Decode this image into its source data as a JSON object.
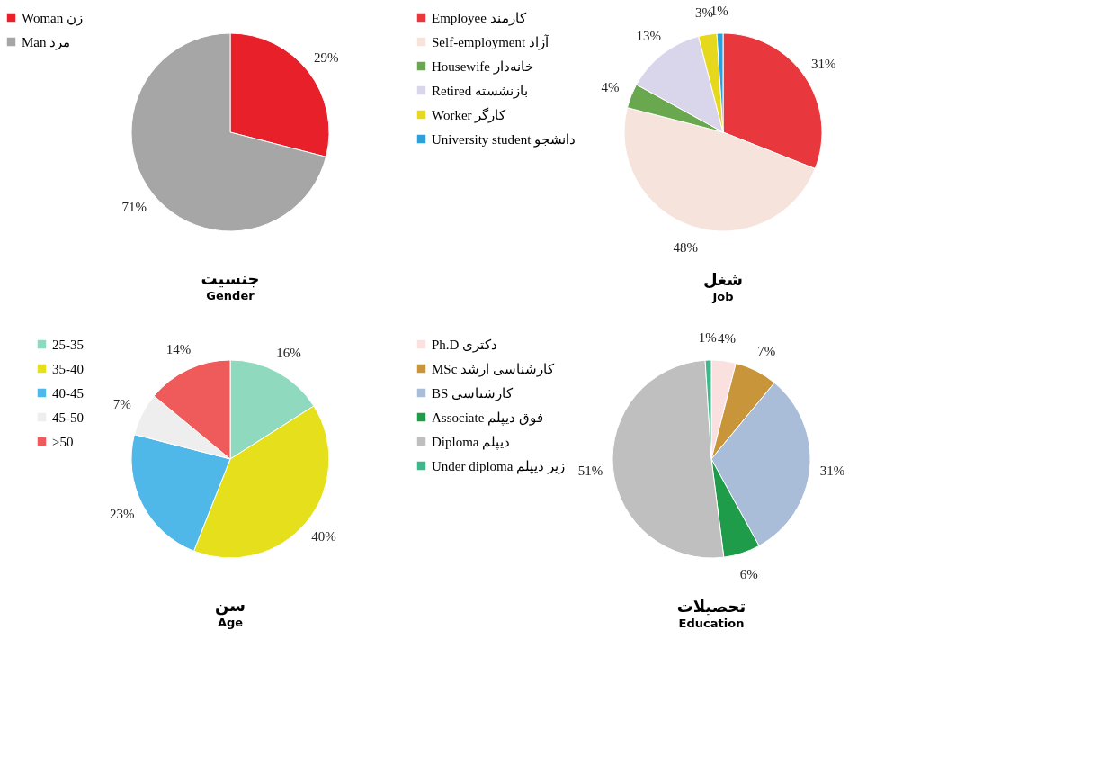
{
  "chart_data": [
    {
      "type": "pie",
      "title": "جنسیت",
      "subtitle": "Gender",
      "categories": [
        "Woman زن",
        "Man مرد"
      ],
      "values": [
        29,
        71
      ],
      "colors": [
        "#e8202a",
        "#a6a6a6"
      ],
      "value_labels": [
        "29%",
        "71%"
      ],
      "legend": "left"
    },
    {
      "type": "pie",
      "title": "شغل",
      "subtitle": "Job",
      "categories": [
        "Employee کارمند",
        "Self-employment آزاد",
        "Housewife خانه‌دار",
        "Retired بازنشسته",
        "Worker کارگر",
        "University student دانشجو"
      ],
      "values": [
        31,
        48,
        4,
        13,
        3,
        1
      ],
      "colors": [
        "#e8383d",
        "#f6e4dc",
        "#6aa84f",
        "#d9d6ec",
        "#e6d81c",
        "#2e9fd8"
      ],
      "value_labels": [
        "31%",
        "48%",
        "4%",
        "13%",
        "3%",
        "1%"
      ],
      "legend": "left"
    },
    {
      "type": "pie",
      "title": "سن",
      "subtitle": "Age",
      "categories": [
        "25-35",
        "35-40",
        "40-45",
        "45-50",
        ">50"
      ],
      "values": [
        16,
        40,
        23,
        7,
        14
      ],
      "colors": [
        "#8fd9be",
        "#e6e01c",
        "#4fb8e8",
        "#eeeeee",
        "#ef5a5a"
      ],
      "value_labels": [
        "16%",
        "40%",
        "23%",
        "7%",
        "14%"
      ],
      "legend": "left"
    },
    {
      "type": "pie",
      "title": "تحصیلات",
      "subtitle": "Education",
      "categories": [
        "Ph.D دکتری",
        "MSc کارشناسی ارشد",
        "BS کارشناسی",
        "Associate فوق دیپلم",
        "Diploma دیپلم",
        "Under diploma زیر دیپلم"
      ],
      "values": [
        4,
        7,
        31,
        6,
        51,
        1
      ],
      "colors": [
        "#fbe0e0",
        "#c8953a",
        "#a9bcd8",
        "#1e9c4a",
        "#bfbfbf",
        "#3cb88c"
      ],
      "value_labels": [
        "4%",
        "7%",
        "31%",
        "6%",
        "51%",
        "1%"
      ],
      "legend": "left"
    }
  ]
}
